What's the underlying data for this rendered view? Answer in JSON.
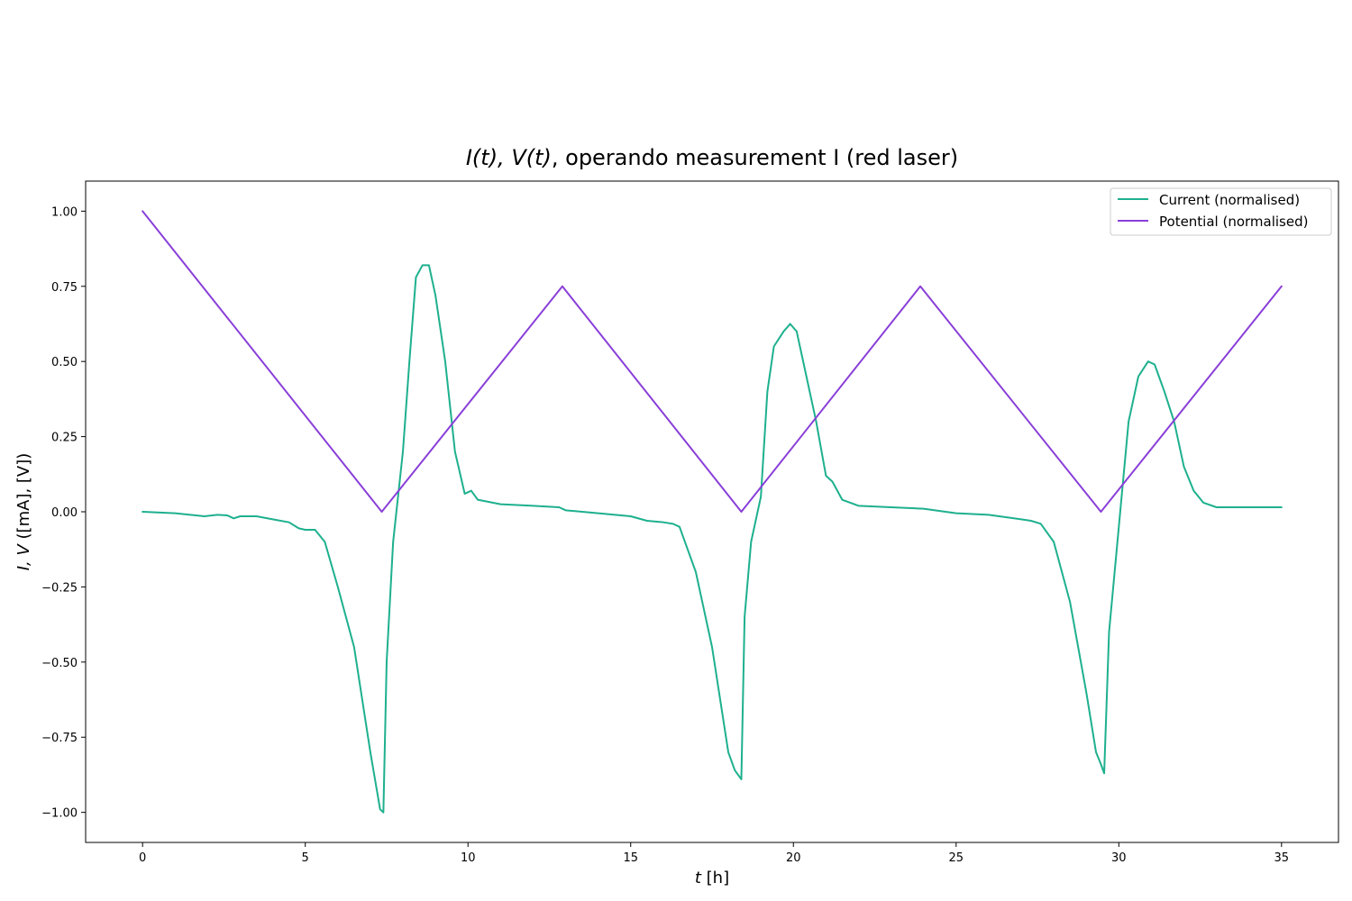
{
  "chart_data": {
    "type": "line",
    "title_prefix": "I(t), V(t)",
    "title_suffix": ", operando measurement I (red laser)",
    "xlabel_var": "t",
    "xlabel_unit": " [h]",
    "ylabel_var": "I, V",
    "ylabel_unit": " ([mA], [V])",
    "xlim": [
      -1.75,
      36.75
    ],
    "ylim": [
      -1.1,
      1.1
    ],
    "x_ticks": [
      0,
      5,
      10,
      15,
      20,
      25,
      30,
      35
    ],
    "x_tick_labels": [
      "0",
      "5",
      "10",
      "15",
      "20",
      "25",
      "30",
      "35"
    ],
    "y_ticks": [
      -1.0,
      -0.75,
      -0.5,
      -0.25,
      0.0,
      0.25,
      0.5,
      0.75,
      1.0
    ],
    "y_tick_labels": [
      "−1.00",
      "−0.75",
      "−0.50",
      "−0.25",
      "0.00",
      "0.25",
      "0.50",
      "0.75",
      "1.00"
    ],
    "grid": false,
    "legend_position": "top-right",
    "series": [
      {
        "name": "Current (normalised)",
        "color": "#1eb08e",
        "x": [
          0,
          1,
          1.9,
          2.3,
          2.6,
          2.8,
          3.0,
          3.5,
          4.0,
          4.5,
          4.8,
          5.0,
          5.3,
          5.6,
          6.0,
          6.5,
          7.0,
          7.3,
          7.4,
          7.5,
          7.7,
          8.0,
          8.2,
          8.4,
          8.6,
          8.8,
          9.0,
          9.3,
          9.6,
          9.9,
          10.0,
          10.1,
          10.3,
          11,
          12,
          12.8,
          13,
          14,
          15,
          15.5,
          16,
          16.3,
          16.5,
          17,
          17.5,
          18.0,
          18.2,
          18.4,
          18.5,
          18.7,
          19.0,
          19.2,
          19.4,
          19.7,
          19.9,
          20.1,
          20.4,
          20.7,
          21.0,
          21.2,
          21.5,
          22,
          23,
          24,
          25,
          26,
          27,
          27.3,
          27.6,
          28.0,
          28.5,
          29.0,
          29.3,
          29.45,
          29.55,
          29.7,
          30.0,
          30.3,
          30.6,
          30.9,
          31.1,
          31.4,
          31.7,
          32.0,
          32.3,
          32.6,
          33.0,
          34,
          35
        ],
        "y": [
          0.0,
          -0.005,
          -0.015,
          -0.01,
          -0.012,
          -0.022,
          -0.015,
          -0.015,
          -0.025,
          -0.035,
          -0.055,
          -0.06,
          -0.06,
          -0.1,
          -0.25,
          -0.45,
          -0.8,
          -0.99,
          -1.0,
          -0.5,
          -0.1,
          0.2,
          0.5,
          0.78,
          0.82,
          0.82,
          0.72,
          0.5,
          0.2,
          0.06,
          0.065,
          0.07,
          0.04,
          0.025,
          0.02,
          0.015,
          0.005,
          -0.005,
          -0.015,
          -0.03,
          -0.035,
          -0.04,
          -0.05,
          -0.2,
          -0.45,
          -0.8,
          -0.86,
          -0.89,
          -0.35,
          -0.1,
          0.05,
          0.4,
          0.55,
          0.6,
          0.625,
          0.6,
          0.45,
          0.3,
          0.12,
          0.1,
          0.04,
          0.02,
          0.015,
          0.01,
          -0.005,
          -0.01,
          -0.025,
          -0.03,
          -0.04,
          -0.1,
          -0.3,
          -0.6,
          -0.8,
          -0.84,
          -0.87,
          -0.4,
          -0.05,
          0.3,
          0.45,
          0.5,
          0.49,
          0.4,
          0.3,
          0.15,
          0.07,
          0.03,
          0.015,
          0.015,
          0.015
        ]
      },
      {
        "name": "Potential (normalised)",
        "color": "#8a3fd8",
        "x": [
          0,
          7.35,
          12.9,
          18.4,
          23.9,
          29.45,
          35
        ],
        "y": [
          1.0,
          0.0,
          0.75,
          0.0,
          0.75,
          0.0,
          0.75
        ]
      }
    ]
  }
}
